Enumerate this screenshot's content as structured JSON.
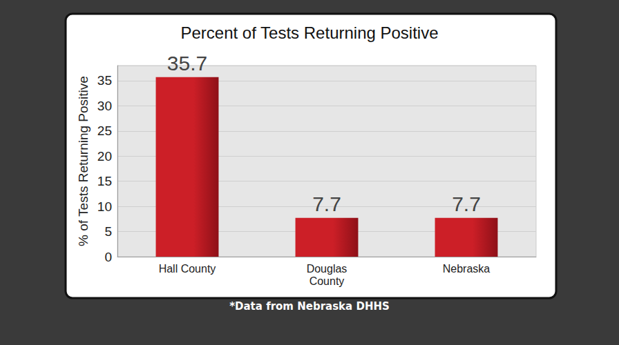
{
  "chart_data": {
    "type": "bar",
    "title": "Percent of Tests Returning Positive",
    "y_label": "% of Tests Returning Positive",
    "categories": [
      "Hall County",
      "Douglas County",
      "Nebraska"
    ],
    "values": [
      35.7,
      7.7,
      7.7
    ],
    "color": "#cc1f27",
    "ylim": [
      0,
      38
    ],
    "yticks": [
      0,
      5,
      10,
      15,
      20,
      25,
      30,
      35
    ],
    "grid": true,
    "data_labels": true,
    "annotations": [
      "*Data from Nebraska DHHS"
    ]
  }
}
